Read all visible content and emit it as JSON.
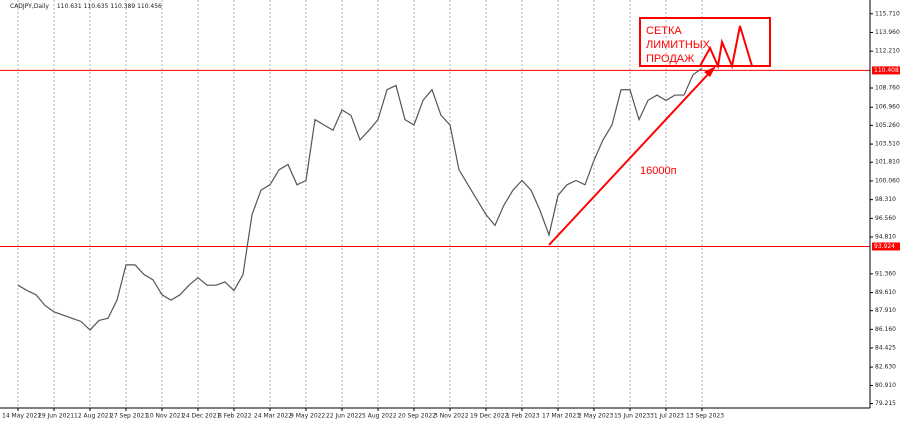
{
  "chart_data": {
    "type": "line",
    "title": "CADJPY,Daily",
    "ohlc": [
      110.631,
      110.635,
      110.389,
      110.456
    ],
    "categories": [
      "14 May 2021",
      null,
      null,
      null,
      "29 Jun 2021",
      null,
      null,
      null,
      "12 Aug 2021",
      null,
      null,
      null,
      "27 Sep 2021",
      null,
      null,
      null,
      "10 Nov 2021",
      null,
      null,
      null,
      "24 Dec 2021",
      null,
      null,
      null,
      "8 Feb 2022",
      null,
      null,
      null,
      "24 Mar 2022",
      null,
      null,
      null,
      "9 May 2022",
      null,
      null,
      null,
      "22 Jun 2022",
      null,
      null,
      null,
      "5 Aug 2022",
      null,
      null,
      null,
      "20 Sep 2022",
      null,
      null,
      null,
      "3 Nov 2022",
      null,
      null,
      null,
      "19 Dec 2022",
      null,
      null,
      null,
      "1 Feb 2023",
      null,
      null,
      null,
      "17 Mar 2023",
      null,
      null,
      null,
      "2 May 2023",
      null,
      null,
      null,
      "15 Jun 2023",
      null,
      null,
      null,
      "31 Jul 2023",
      null,
      null,
      null,
      "13 Sep 2023"
    ],
    "series": [
      {
        "name": "CADJPY",
        "color": "#555555",
        "values": [
          90.3,
          89.8,
          89.4,
          88.4,
          87.8,
          87.5,
          87.2,
          86.9,
          86.1,
          87.0,
          87.2,
          88.9,
          92.2,
          92.2,
          91.3,
          90.8,
          89.4,
          88.9,
          89.4,
          90.3,
          91.0,
          90.3,
          90.3,
          90.6,
          89.8,
          91.3,
          96.9,
          99.2,
          99.7,
          101.1,
          101.6,
          99.7,
          100.1,
          105.8,
          105.3,
          104.8,
          106.7,
          106.2,
          103.9,
          104.8,
          105.8,
          108.6,
          109.0,
          105.8,
          105.3,
          107.6,
          108.6,
          106.2,
          105.3,
          101.1,
          99.7,
          98.3,
          96.9,
          95.9,
          97.8,
          99.2,
          100.1,
          99.2,
          97.3,
          95.0,
          98.7,
          99.7,
          100.1,
          99.7,
          102.0,
          103.9,
          105.3,
          108.6,
          108.6,
          105.8,
          107.6,
          108.1,
          107.6,
          108.1,
          108.1,
          110.0,
          110.6
        ]
      }
    ],
    "ylim": [
      78.8,
      117.0
    ],
    "yticks": [
      79.215,
      {
        "value": 80.91,
        "label": "80.910"
      },
      {
        "value": 82.63,
        "label": "82.630"
      },
      84.425,
      {
        "value": 86.16,
        "label": "86.160"
      },
      {
        "value": 87.91,
        "label": "87.910"
      },
      {
        "value": 89.61,
        "label": "89.610"
      },
      {
        "value": 91.36,
        "label": "91.360"
      },
      {
        "value": 94.81,
        "label": "94.810"
      },
      {
        "value": 96.56,
        "label": "96.560"
      },
      {
        "value": 98.31,
        "label": "98.310"
      },
      {
        "value": 100.06,
        "label": "100.060"
      },
      {
        "value": 101.81,
        "label": "101.810"
      },
      {
        "value": 103.51,
        "label": "103.510"
      },
      {
        "value": 105.26,
        "label": "105.260"
      },
      {
        "value": 106.96,
        "label": "106.960"
      },
      {
        "value": 108.76,
        "label": "108.760"
      },
      {
        "value": 112.21,
        "label": "112.210"
      },
      {
        "value": 113.96,
        "label": "113.960"
      },
      {
        "value": 115.71,
        "label": "115.710"
      }
    ],
    "hlines": [
      {
        "value": 110.408,
        "color": "#ff0000"
      },
      {
        "value": 93.924,
        "color": "#ff0000"
      }
    ],
    "grid": true,
    "annotations": {
      "box": [
        "СЕТКА",
        "ЛИМИТНЫХ",
        "ПРОДАЖ"
      ],
      "trend": "16000п"
    }
  }
}
